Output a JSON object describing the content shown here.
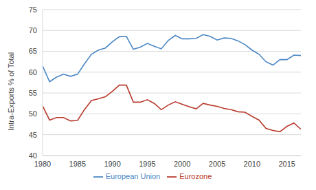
{
  "chart_data": {
    "type": "line",
    "y_label": "Intra-Exports % of Total",
    "x": [
      1980,
      1981,
      1982,
      1983,
      1984,
      1985,
      1986,
      1987,
      1988,
      1989,
      1990,
      1991,
      1992,
      1993,
      1994,
      1995,
      1996,
      1997,
      1998,
      1999,
      2000,
      2001,
      2002,
      2003,
      2004,
      2005,
      2006,
      2007,
      2008,
      2009,
      2010,
      2011,
      2012,
      2013,
      2014,
      2015,
      2016,
      2017
    ],
    "series": [
      {
        "name": "European Union",
        "color": "#4a86c4",
        "values": [
          61.5,
          57.7,
          58.8,
          59.5,
          59.0,
          59.5,
          62.0,
          64.3,
          65.3,
          65.8,
          67.3,
          68.5,
          68.6,
          65.5,
          66.0,
          66.9,
          66.2,
          65.6,
          67.6,
          68.8,
          68.0,
          68.0,
          68.1,
          69.0,
          68.6,
          67.7,
          68.2,
          68.1,
          67.5,
          66.6,
          65.3,
          64.3,
          62.5,
          61.7,
          63.0,
          63.0,
          64.1,
          64.0
        ]
      },
      {
        "name": "Eurozone",
        "color": "#b83a2c",
        "values": [
          51.9,
          48.5,
          49.1,
          49.1,
          48.3,
          48.4,
          51.0,
          53.2,
          53.6,
          54.1,
          55.4,
          56.9,
          56.9,
          52.8,
          52.8,
          53.4,
          52.5,
          51.0,
          52.1,
          52.9,
          52.3,
          51.7,
          51.2,
          52.5,
          52.1,
          51.8,
          51.3,
          51.0,
          50.5,
          50.4,
          49.4,
          48.5,
          46.5,
          46.0,
          45.7,
          47.0,
          47.8,
          46.3
        ]
      }
    ],
    "xlim": [
      1980,
      2017
    ],
    "xticks": [
      1980,
      1985,
      1990,
      1995,
      2000,
      2005,
      2010,
      2015
    ],
    "ylim": [
      40,
      75
    ],
    "yticks": [
      40,
      45,
      50,
      55,
      60,
      65,
      70,
      75
    ],
    "grid": true,
    "legend": "bottom"
  }
}
